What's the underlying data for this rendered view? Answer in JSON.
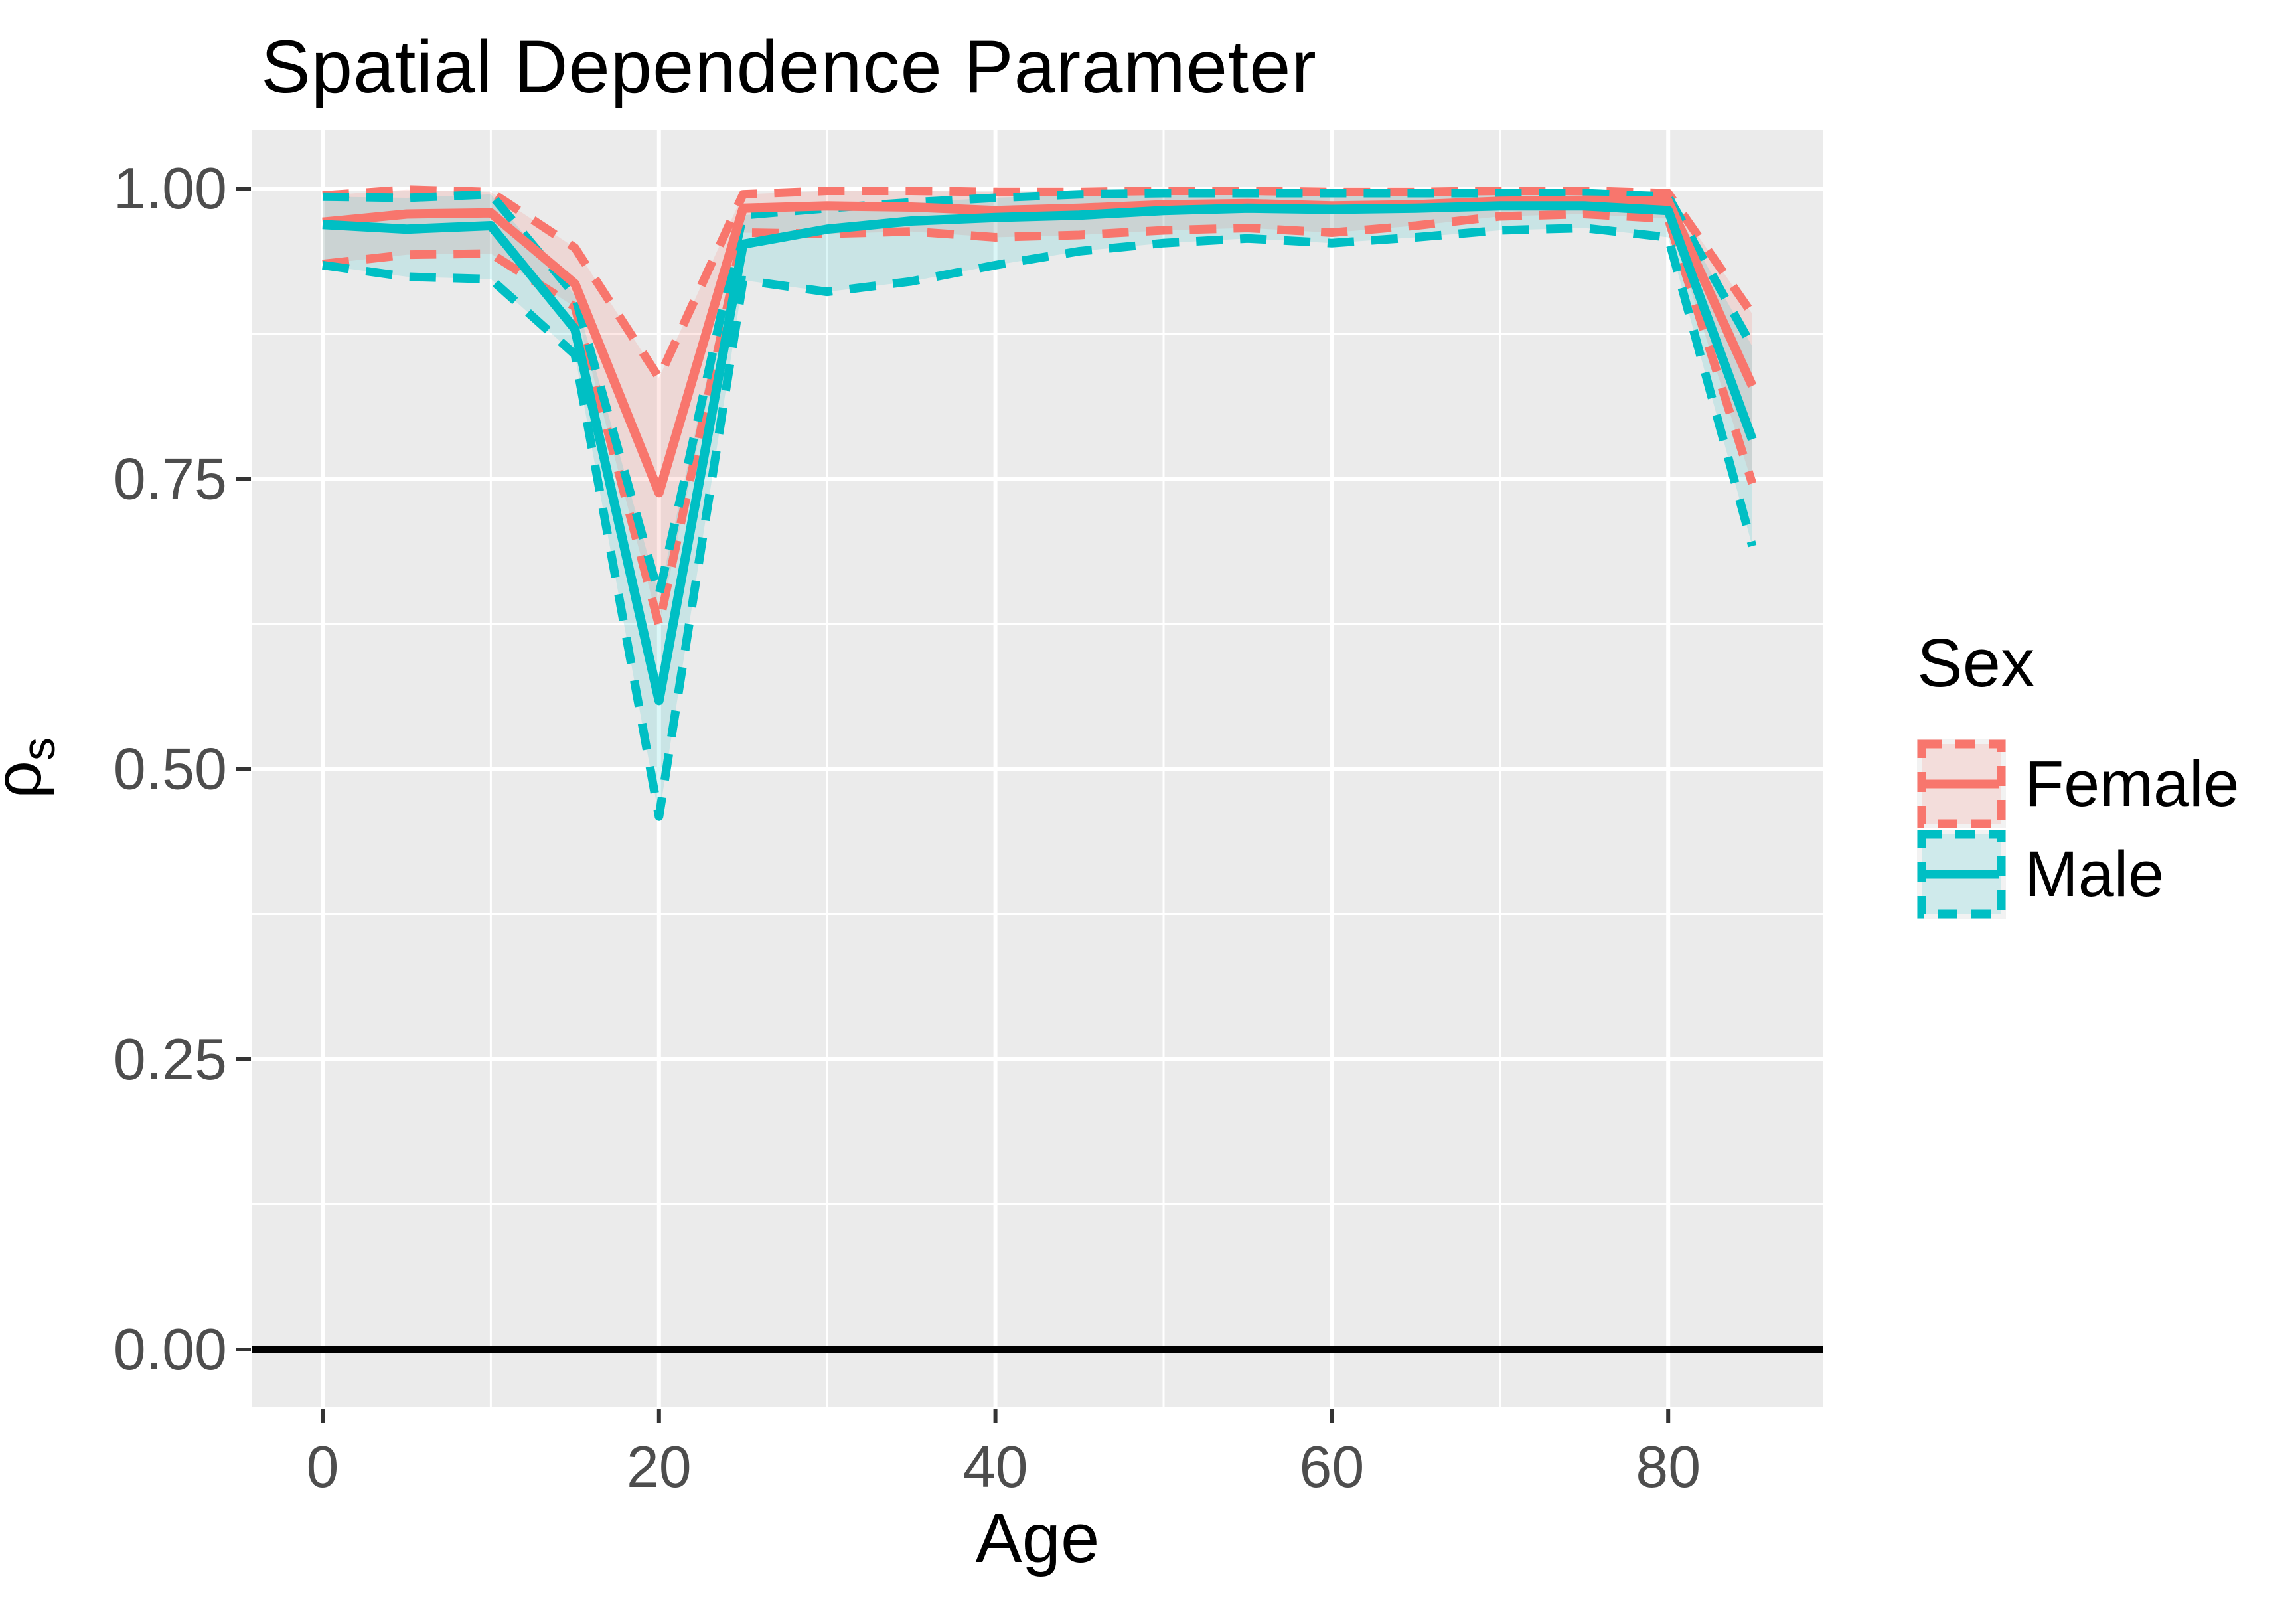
{
  "title": "Spatial Dependence Parameter",
  "legend": {
    "title": "Sex",
    "entries": [
      {
        "label": "Female",
        "color": "#F8766D",
        "fill": "rgba(248,118,109,0.17)"
      },
      {
        "label": "Male",
        "color": "#00BFC4",
        "fill": "rgba(0,191,196,0.14)"
      }
    ]
  },
  "colors": {
    "female": "#F8766D",
    "male": "#00BFC4",
    "female_ribbon": "rgba(248,118,109,0.17)",
    "male_ribbon": "rgba(0,191,196,0.14)",
    "panel_bg": "#EBEBEB",
    "grid": "#FFFFFF",
    "tick_mark": "#333333",
    "tick_label": "#4D4D4D",
    "zero_line": "#000000",
    "legend_key_bg": "#F2F2F2"
  },
  "chart_data": {
    "type": "line",
    "title": "Spatial Dependence Parameter",
    "xlabel": "Age",
    "ylabel": "ρs",
    "ylabel_base": "ρ",
    "ylabel_sub": "s",
    "legend_position": "right",
    "grid": "on",
    "x_ticks": [
      0,
      20,
      40,
      60,
      80
    ],
    "x_minor_ticks": [
      10,
      30,
      50,
      70
    ],
    "y_ticks": [
      0.0,
      0.25,
      0.5,
      0.75,
      1.0
    ],
    "y_tick_labels": [
      "0.00",
      "0.25",
      "0.50",
      "0.75",
      "1.00"
    ],
    "y_minor_ticks": [
      0.125,
      0.375,
      0.625,
      0.875
    ],
    "xlim": [
      -4.2,
      89.2
    ],
    "ylim": [
      -0.05,
      1.05
    ],
    "zero_reference_line": 0.0,
    "x": [
      0,
      5,
      10,
      15,
      20,
      25,
      30,
      35,
      40,
      45,
      50,
      55,
      60,
      65,
      70,
      75,
      80,
      85
    ],
    "series": [
      {
        "name": "Female",
        "estimate": [
          0.971,
          0.978,
          0.979,
          0.918,
          0.738,
          0.983,
          0.985,
          0.984,
          0.981,
          0.983,
          0.986,
          0.987,
          0.985,
          0.986,
          0.989,
          0.99,
          0.989,
          0.83
        ],
        "lower": [
          0.935,
          0.943,
          0.944,
          0.898,
          0.624,
          0.962,
          0.961,
          0.963,
          0.958,
          0.96,
          0.964,
          0.966,
          0.962,
          0.968,
          0.976,
          0.978,
          0.974,
          0.746
        ],
        "upper": [
          0.994,
          0.999,
          0.997,
          0.949,
          0.837,
          0.995,
          0.998,
          0.998,
          0.997,
          0.997,
          0.998,
          0.998,
          0.997,
          0.997,
          0.998,
          0.998,
          0.996,
          0.892
        ]
      },
      {
        "name": "Male",
        "estimate": [
          0.969,
          0.965,
          0.968,
          0.879,
          0.559,
          0.952,
          0.965,
          0.972,
          0.975,
          0.977,
          0.981,
          0.983,
          0.982,
          0.983,
          0.985,
          0.985,
          0.981,
          0.784
        ],
        "lower": [
          0.934,
          0.924,
          0.922,
          0.857,
          0.459,
          0.921,
          0.911,
          0.92,
          0.934,
          0.946,
          0.953,
          0.957,
          0.953,
          0.958,
          0.964,
          0.966,
          0.958,
          0.692
        ],
        "upper": [
          0.993,
          0.992,
          0.995,
          0.908,
          0.65,
          0.977,
          0.983,
          0.988,
          0.992,
          0.995,
          0.996,
          0.996,
          0.996,
          0.996,
          0.996,
          0.996,
          0.993,
          0.864
        ]
      }
    ]
  }
}
